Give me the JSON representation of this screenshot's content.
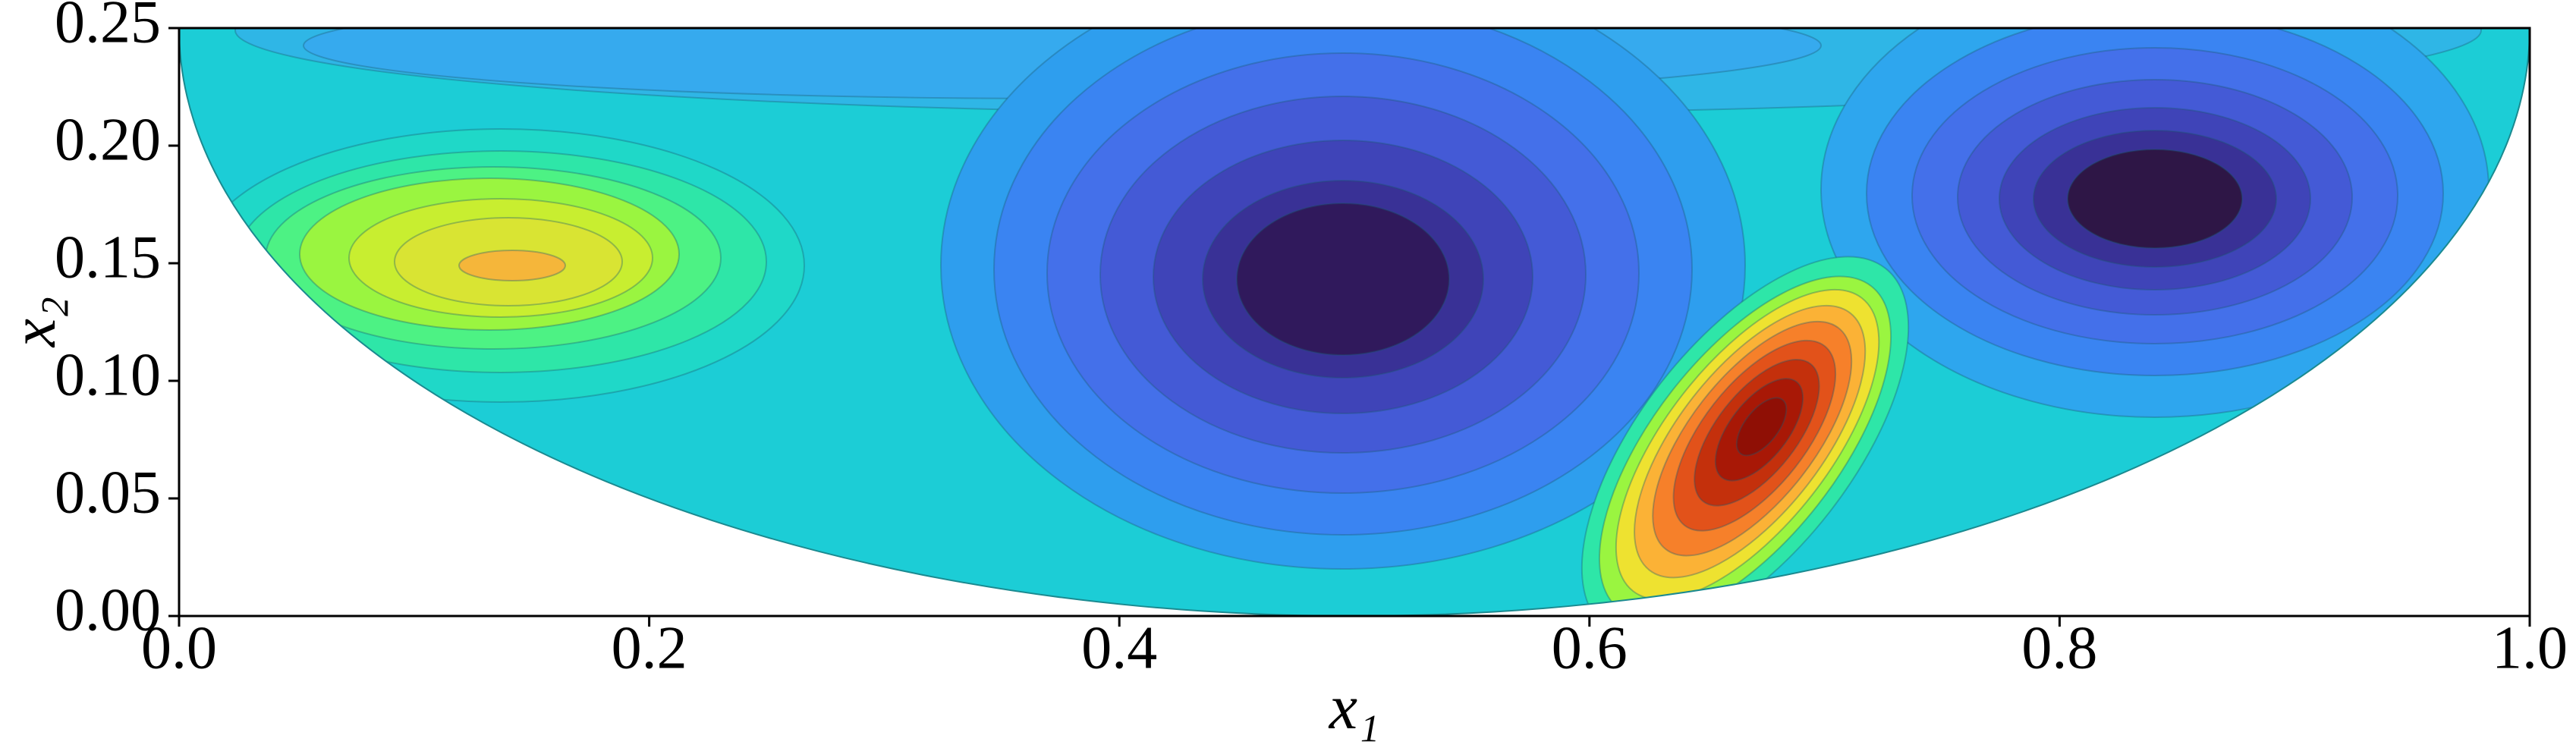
{
  "chart_data": {
    "type": "contour",
    "x_label": "x₁",
    "y_label": "x₂",
    "xlim": [
      0,
      1
    ],
    "ylim": [
      0,
      0.25
    ],
    "xticks": [
      {
        "value": 0,
        "label": "0.0"
      },
      0.2,
      0.4,
      0.6,
      0.8,
      {
        "value": 1,
        "label": "1.0"
      }
    ],
    "yticks": [
      {
        "value": 0,
        "label": "0.00"
      },
      0.05,
      {
        "value": 0.1,
        "label": "0.10"
      },
      0.15,
      {
        "value": 0.2,
        "label": "0.20"
      },
      0.25
    ]
  }
}
